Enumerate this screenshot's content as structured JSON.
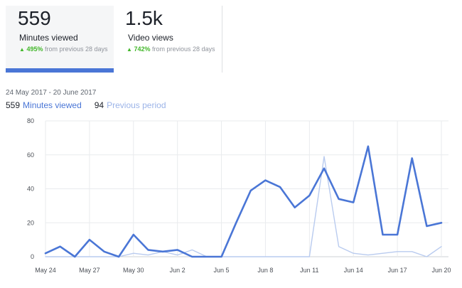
{
  "tabs": [
    {
      "metric": "559",
      "label": "Minutes viewed",
      "change_pct": "495%",
      "change_text": " from previous 28 days",
      "active": true
    },
    {
      "metric": "1.5k",
      "label": "Video views",
      "change_pct": "742%",
      "change_text": " from previous 28 days",
      "active": false
    }
  ],
  "date_range": "24 May 2017 - 20 June 2017",
  "legend": {
    "current_value": "559",
    "current_label": "Minutes viewed",
    "previous_value": "94",
    "previous_label": "Previous period"
  },
  "colors": {
    "current": "#4a76d6",
    "previous": "#b9cbef",
    "grid": "#e9ebee",
    "axis": "#ccd0d5"
  },
  "icons": {
    "change_indicator": "up-triangle-icon"
  },
  "chart_data": {
    "type": "line",
    "x": [
      "May 24",
      "May 25",
      "May 26",
      "May 27",
      "May 28",
      "May 29",
      "May 30",
      "May 31",
      "Jun 1",
      "Jun 2",
      "Jun 3",
      "Jun 4",
      "Jun 5",
      "Jun 6",
      "Jun 7",
      "Jun 8",
      "Jun 9",
      "Jun 10",
      "Jun 11",
      "Jun 12",
      "Jun 13",
      "Jun 14",
      "Jun 15",
      "Jun 16",
      "Jun 17",
      "Jun 18",
      "Jun 19",
      "Jun 20"
    ],
    "x_tick_labels": [
      "May 24",
      "May 27",
      "May 30",
      "Jun 2",
      "Jun 5",
      "Jun 8",
      "Jun 11",
      "Jun 14",
      "Jun 17",
      "Jun 20"
    ],
    "y_ticks": [
      0,
      20,
      40,
      60,
      80
    ],
    "ylim": [
      0,
      80
    ],
    "grid": true,
    "series": [
      {
        "name": "Minutes viewed",
        "values": [
          2,
          6,
          0,
          10,
          3,
          0,
          13,
          4,
          3,
          4,
          0,
          0,
          0,
          20,
          39,
          45,
          41,
          29,
          36,
          52,
          34,
          32,
          65,
          13,
          13,
          58,
          18,
          20
        ]
      },
      {
        "name": "Previous period",
        "values": [
          0,
          0,
          0,
          0,
          0,
          0,
          2,
          1,
          3,
          1,
          4,
          0,
          0,
          0,
          0,
          0,
          0,
          0,
          0,
          59,
          6,
          2,
          1,
          2,
          3,
          3,
          0,
          6
        ]
      }
    ]
  }
}
